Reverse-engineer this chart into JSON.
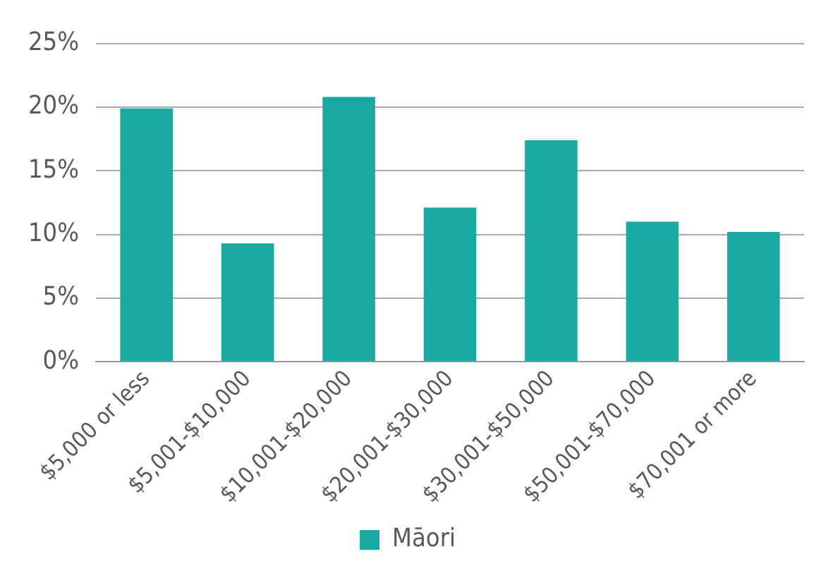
{
  "chart_data": {
    "type": "bar",
    "categories": [
      "$5,000 or less",
      "$5,001-$10,000",
      "$10,001-$20,000",
      "$20,001-$30,000",
      "$30,001-$50,000",
      "$50,001-$70,000",
      "$70,001 or more"
    ],
    "series": [
      {
        "name": "Māori",
        "color": "#19a9a5",
        "values": [
          19.9,
          9.3,
          20.8,
          12.1,
          17.4,
          11.0,
          10.2
        ]
      }
    ],
    "ylim": [
      0,
      25
    ],
    "yticks": [
      {
        "value": 0,
        "label": "0%"
      },
      {
        "value": 5,
        "label": "5%"
      },
      {
        "value": 10,
        "label": "10%"
      },
      {
        "value": 15,
        "label": "15%"
      },
      {
        "value": 20,
        "label": "20%"
      },
      {
        "value": 25,
        "label": "25%"
      }
    ],
    "grid": "y",
    "legend": "bottom"
  }
}
